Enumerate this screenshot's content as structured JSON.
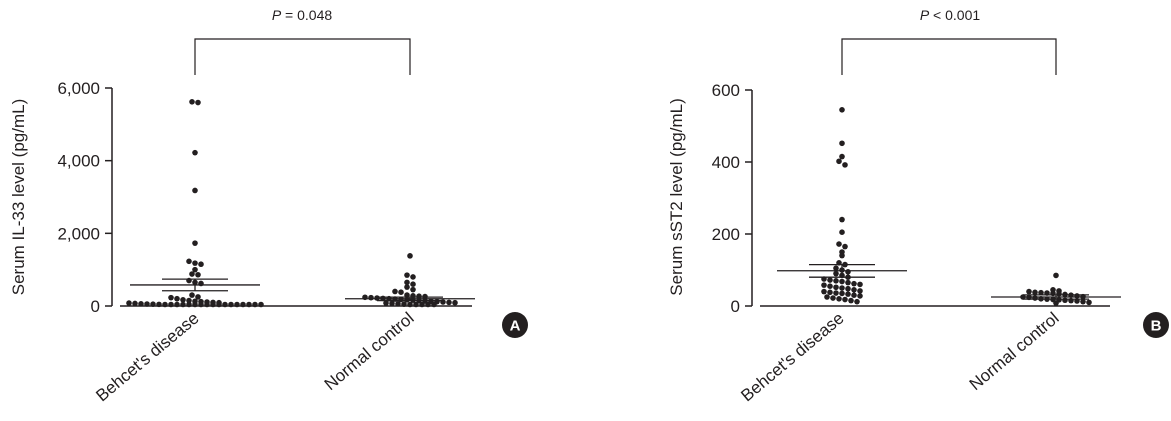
{
  "chart_data": [
    {
      "type": "scatter",
      "panel": "A",
      "ylabel": "Serum IL-33 level (pg/mL)",
      "ylim": [
        0,
        6000
      ],
      "yticks": [
        0,
        2000,
        4000,
        6000
      ],
      "ytick_labels": [
        "0",
        "2,000",
        "4,000",
        "6,000"
      ],
      "categories": [
        "Behcet's disease",
        "Normal control"
      ],
      "significance": {
        "text_italic": "P",
        "text_rest": " = 0.048"
      },
      "series": [
        {
          "values": [
            5620,
            5600,
            4220,
            3180,
            1730,
            1230,
            1180,
            1150,
            1000,
            880,
            860,
            700,
            650,
            620,
            300,
            250,
            230,
            200,
            170,
            150,
            130,
            120,
            110,
            100,
            90,
            80,
            70,
            60,
            55,
            50,
            45,
            40,
            35,
            30,
            25,
            20,
            18,
            15,
            12,
            10,
            8,
            6,
            5,
            4,
            3,
            2,
            1,
            0
          ],
          "mean": 580,
          "sem_low": 420,
          "sem_high": 740
        },
        {
          "values": [
            1380,
            850,
            800,
            650,
            600,
            520,
            450,
            400,
            380,
            300,
            280,
            270,
            260,
            240,
            230,
            220,
            210,
            200,
            190,
            180,
            170,
            160,
            150,
            140,
            130,
            120,
            110,
            100,
            90,
            80,
            70,
            60,
            50,
            40,
            30,
            20,
            10,
            5
          ],
          "mean": 200,
          "sem_low": 150,
          "sem_high": 245
        }
      ]
    },
    {
      "type": "scatter",
      "panel": "B",
      "ylabel": "Serum sST2 level (pg/mL)",
      "ylim": [
        0,
        600
      ],
      "yticks": [
        0,
        200,
        400,
        600
      ],
      "ytick_labels": [
        "0",
        "200",
        "400",
        "600"
      ],
      "categories": [
        "Behcet's disease",
        "Normal control"
      ],
      "significance": {
        "text_italic": "P",
        "text_rest": " < 0.001"
      },
      "series": [
        {
          "values": [
            545,
            452,
            415,
            402,
            392,
            240,
            205,
            172,
            165,
            150,
            140,
            120,
            115,
            105,
            100,
            95,
            90,
            85,
            80,
            75,
            72,
            70,
            68,
            65,
            62,
            60,
            58,
            55,
            52,
            50,
            48,
            45,
            42,
            40,
            38,
            36,
            35,
            33,
            30,
            28,
            25,
            22,
            20,
            18,
            15,
            12
          ],
          "mean": 98,
          "sem_low": 80,
          "sem_high": 115
        },
        {
          "values": [
            85,
            45,
            42,
            40,
            38,
            37,
            36,
            35,
            34,
            32,
            30,
            28,
            26,
            25,
            24,
            22,
            20,
            19,
            18,
            17,
            16,
            15,
            14,
            12,
            10,
            8
          ],
          "mean": 25,
          "sem_low": 19,
          "sem_high": 31
        }
      ]
    }
  ]
}
